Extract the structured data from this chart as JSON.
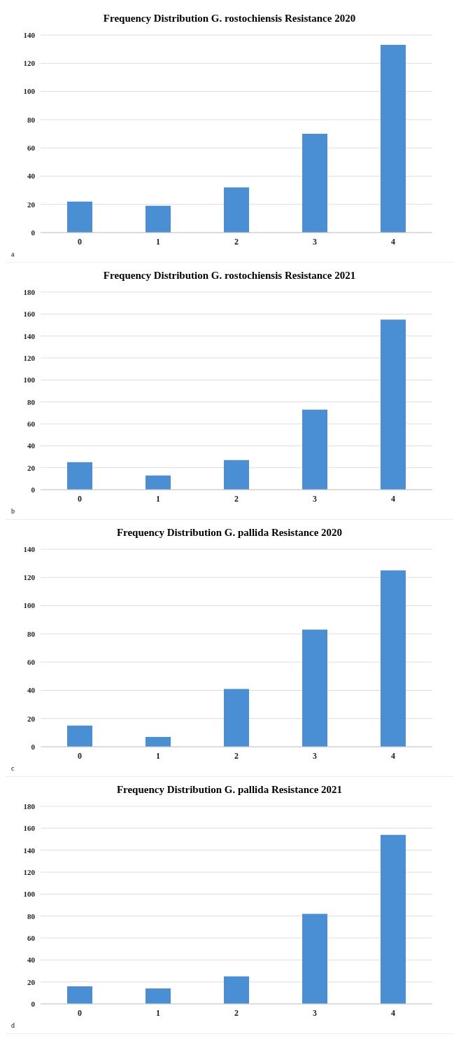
{
  "chart_data": [
    {
      "type": "bar",
      "title": "Frequency Distribution G. rostochiensis Resistance 2020",
      "categories": [
        "0",
        "1",
        "2",
        "3",
        "4"
      ],
      "values": [
        22,
        19,
        32,
        70,
        133
      ],
      "color": "#4a8fd4",
      "ylim": [
        0,
        140
      ],
      "yticks": [
        0,
        20,
        40,
        60,
        80,
        100,
        120,
        140
      ],
      "grid": "y",
      "annotations": [
        "a"
      ]
    },
    {
      "type": "bar",
      "title": "Frequency Distribution G. rostochiensis Resistance 2021",
      "categories": [
        "0",
        "1",
        "2",
        "3",
        "4"
      ],
      "values": [
        25,
        13,
        27,
        73,
        155
      ],
      "color": "#4a8fd4",
      "ylim": [
        0,
        180
      ],
      "yticks": [
        0,
        20,
        40,
        60,
        80,
        100,
        120,
        140,
        160,
        180
      ],
      "grid": "y",
      "annotations": [
        "b"
      ]
    },
    {
      "type": "bar",
      "title": "Frequency Distribution G. pallida Resistance 2020",
      "categories": [
        "0",
        "1",
        "2",
        "3",
        "4"
      ],
      "values": [
        15,
        7,
        41,
        83,
        125
      ],
      "color": "#4a8fd4",
      "ylim": [
        0,
        140
      ],
      "yticks": [
        0,
        20,
        40,
        60,
        80,
        100,
        120,
        140
      ],
      "grid": "y",
      "annotations": [
        "c"
      ]
    },
    {
      "type": "bar",
      "title": "Frequency Distribution G. pallida Resistance 2021",
      "categories": [
        "0",
        "1",
        "2",
        "3",
        "4"
      ],
      "values": [
        16,
        14,
        25,
        82,
        154
      ],
      "color": "#4a8fd4",
      "ylim": [
        0,
        180
      ],
      "yticks": [
        0,
        20,
        40,
        60,
        80,
        100,
        120,
        140,
        160,
        180
      ],
      "grid": "y",
      "annotations": [
        "d"
      ]
    }
  ]
}
